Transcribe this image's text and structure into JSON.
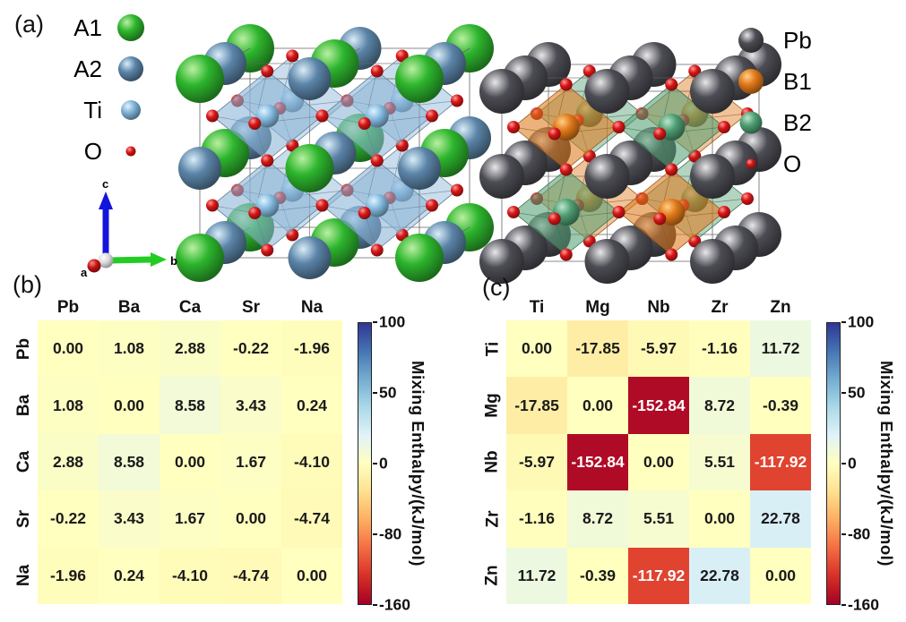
{
  "panel_labels": {
    "a": "(a)",
    "b": "(b)",
    "c": "(c)"
  },
  "legends": {
    "left": [
      {
        "label": "A1",
        "main": "#2db52d",
        "hi": "#baf0a2",
        "r": 15
      },
      {
        "label": "A2",
        "main": "#5b84a8",
        "hi": "#d9edf8",
        "r": 14
      },
      {
        "label": "Ti",
        "main": "#7fb2d8",
        "hi": "#e2f3fc",
        "r": 11
      },
      {
        "label": "O",
        "main": "#d81616",
        "hi": "#ff9a9a",
        "r": 5.5
      }
    ],
    "right": [
      {
        "label": "Pb",
        "main": "#4c4c54",
        "hi": "#e8e8ea",
        "r": 14
      },
      {
        "label": "B1",
        "main": "#e07818",
        "hi": "#ffcf8a",
        "r": 14
      },
      {
        "label": "B2",
        "main": "#4e9e72",
        "hi": "#bde6cd",
        "r": 12.5
      },
      {
        "label": "O",
        "main": "#d81616",
        "hi": "#ff9a9a",
        "r": 5.5
      }
    ]
  },
  "axes_widget": {
    "a": "a",
    "b": "b",
    "c": "c",
    "a_color": "#c01010",
    "b_color": "#22cc22",
    "c_color": "#1414dd",
    "origin_color": "#d8d8d8"
  },
  "structures": {
    "left": {
      "a_sites": [
        {
          "main": "#2db52d",
          "hi": "#baf0a2",
          "r": 27
        },
        {
          "main": "#5b84a8",
          "hi": "#d9edf8",
          "r": 24
        }
      ],
      "octahedra": [
        {
          "fill": "#8ab4d6",
          "b_main": "#85bce2",
          "b_hi": "#e2f3fc"
        }
      ],
      "b_radius": 13,
      "oxygen": {
        "main": "#d81616",
        "hi": "#ff9a9a",
        "r": 7
      }
    },
    "right": {
      "a_sites": [
        {
          "main": "#4c4c54",
          "hi": "#e8e8ea",
          "r": 25
        },
        {
          "main": "#4c4c54",
          "hi": "#e8e8ea",
          "r": 25
        }
      ],
      "octahedra": [
        {
          "fill": "#55a075",
          "b_main": "#4e9e72",
          "b_hi": "#bde6cd"
        },
        {
          "fill": "#dd7a1e",
          "b_main": "#e07818",
          "b_hi": "#ffcf8a"
        }
      ],
      "b_radius": 15,
      "oxygen": {
        "main": "#d81616",
        "hi": "#ff9a9a",
        "r": 7
      }
    }
  },
  "chart_data": [
    {
      "type": "heatmap",
      "panel": "(b)",
      "categories": [
        "Pb",
        "Ba",
        "Ca",
        "Sr",
        "Na"
      ],
      "matrix": [
        [
          0.0,
          1.08,
          2.88,
          -0.22,
          -1.96
        ],
        [
          1.08,
          0.0,
          8.58,
          3.43,
          0.24
        ],
        [
          2.88,
          8.58,
          0.0,
          1.67,
          -4.1
        ],
        [
          -0.22,
          3.43,
          1.67,
          0.0,
          -4.74
        ],
        [
          -1.96,
          0.24,
          -4.1,
          -4.74,
          0.0
        ]
      ],
      "colorbar": {
        "label": "Mixing Enthalpy/(kJ/mol)",
        "ticks": [
          100,
          50,
          0,
          -80,
          -160
        ],
        "vmin": -160,
        "vcenter": 0,
        "vmax": 100,
        "colormap": "RdYlBu"
      }
    },
    {
      "type": "heatmap",
      "panel": "(c)",
      "categories": [
        "Ti",
        "Mg",
        "Nb",
        "Zr",
        "Zn"
      ],
      "matrix": [
        [
          0.0,
          -17.85,
          -5.97,
          -1.16,
          11.72
        ],
        [
          -17.85,
          0.0,
          -152.84,
          8.72,
          -0.39
        ],
        [
          -5.97,
          -152.84,
          0.0,
          5.51,
          -117.92
        ],
        [
          -1.16,
          8.72,
          5.51,
          0.0,
          22.78
        ],
        [
          11.72,
          -0.39,
          -117.92,
          22.78,
          0.0
        ]
      ],
      "colorbar": {
        "label": "Mixing Enthalpy/(kJ/mol)",
        "ticks": [
          100,
          50,
          0,
          -80,
          -160
        ],
        "vmin": -160,
        "vcenter": 0,
        "vmax": 100,
        "colormap": "RdYlBu"
      }
    }
  ]
}
